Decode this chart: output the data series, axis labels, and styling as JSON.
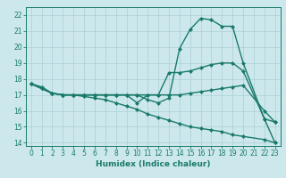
{
  "lines": [
    {
      "x": [
        0,
        1,
        2,
        3,
        4,
        5,
        6,
        7,
        8,
        9,
        10,
        11,
        12,
        13,
        14,
        15,
        16,
        17,
        18,
        19,
        20,
        22,
        23
      ],
      "y": [
        17.7,
        17.4,
        17.1,
        17.0,
        17.0,
        17.0,
        17.0,
        17.0,
        17.0,
        17.0,
        17.0,
        16.7,
        16.5,
        16.8,
        19.9,
        21.1,
        21.8,
        21.7,
        21.3,
        21.3,
        19.0,
        15.5,
        14.0
      ],
      "color": "#1a7a6a",
      "marker": "D",
      "markersize": 2,
      "linewidth": 1.0
    },
    {
      "x": [
        0,
        1,
        2,
        3,
        4,
        5,
        6,
        7,
        8,
        9,
        10,
        11,
        12,
        13,
        14,
        15,
        16,
        17,
        18,
        19,
        20,
        22,
        23
      ],
      "y": [
        17.7,
        17.4,
        17.1,
        17.0,
        17.0,
        17.0,
        17.0,
        17.0,
        17.0,
        17.0,
        16.5,
        17.0,
        17.0,
        18.4,
        18.4,
        18.5,
        18.7,
        18.9,
        19.0,
        19.0,
        18.5,
        15.5,
        15.3
      ],
      "color": "#1a7a6a",
      "marker": "D",
      "markersize": 2,
      "linewidth": 1.0
    },
    {
      "x": [
        0,
        1,
        2,
        3,
        4,
        5,
        6,
        7,
        8,
        9,
        10,
        11,
        12,
        13,
        14,
        15,
        16,
        17,
        18,
        19,
        20,
        22,
        23
      ],
      "y": [
        17.7,
        17.4,
        17.1,
        17.0,
        17.0,
        17.0,
        17.0,
        17.0,
        17.0,
        17.0,
        17.0,
        17.0,
        17.0,
        17.0,
        17.0,
        17.1,
        17.2,
        17.3,
        17.4,
        17.5,
        17.6,
        16.0,
        15.3
      ],
      "color": "#1a7a6a",
      "marker": "D",
      "markersize": 2,
      "linewidth": 1.0
    },
    {
      "x": [
        0,
        1,
        2,
        3,
        4,
        5,
        6,
        7,
        8,
        9,
        10,
        11,
        12,
        13,
        14,
        15,
        16,
        17,
        18,
        19,
        20,
        22,
        23
      ],
      "y": [
        17.7,
        17.5,
        17.1,
        17.0,
        17.0,
        16.9,
        16.8,
        16.7,
        16.5,
        16.3,
        16.1,
        15.8,
        15.6,
        15.4,
        15.2,
        15.0,
        14.9,
        14.8,
        14.7,
        14.5,
        14.4,
        14.2,
        14.0
      ],
      "color": "#1a7a6a",
      "marker": "D",
      "markersize": 2,
      "linewidth": 1.0
    }
  ],
  "xlabel": "Humidex (Indice chaleur)",
  "xlim": [
    -0.5,
    23.5
  ],
  "ylim": [
    13.8,
    22.5
  ],
  "yticks": [
    14,
    15,
    16,
    17,
    18,
    19,
    20,
    21,
    22
  ],
  "xticks": [
    0,
    1,
    2,
    3,
    4,
    5,
    6,
    7,
    8,
    9,
    10,
    11,
    12,
    13,
    14,
    15,
    16,
    17,
    18,
    19,
    20,
    21,
    22,
    23
  ],
  "bg_color": "#cce8ec",
  "grid_color": "#aacfd4",
  "line_color": "#1a7a6a",
  "axis_color": "#1a7a6a",
  "xlabel_fontsize": 6.5,
  "tick_fontsize": 5.5
}
